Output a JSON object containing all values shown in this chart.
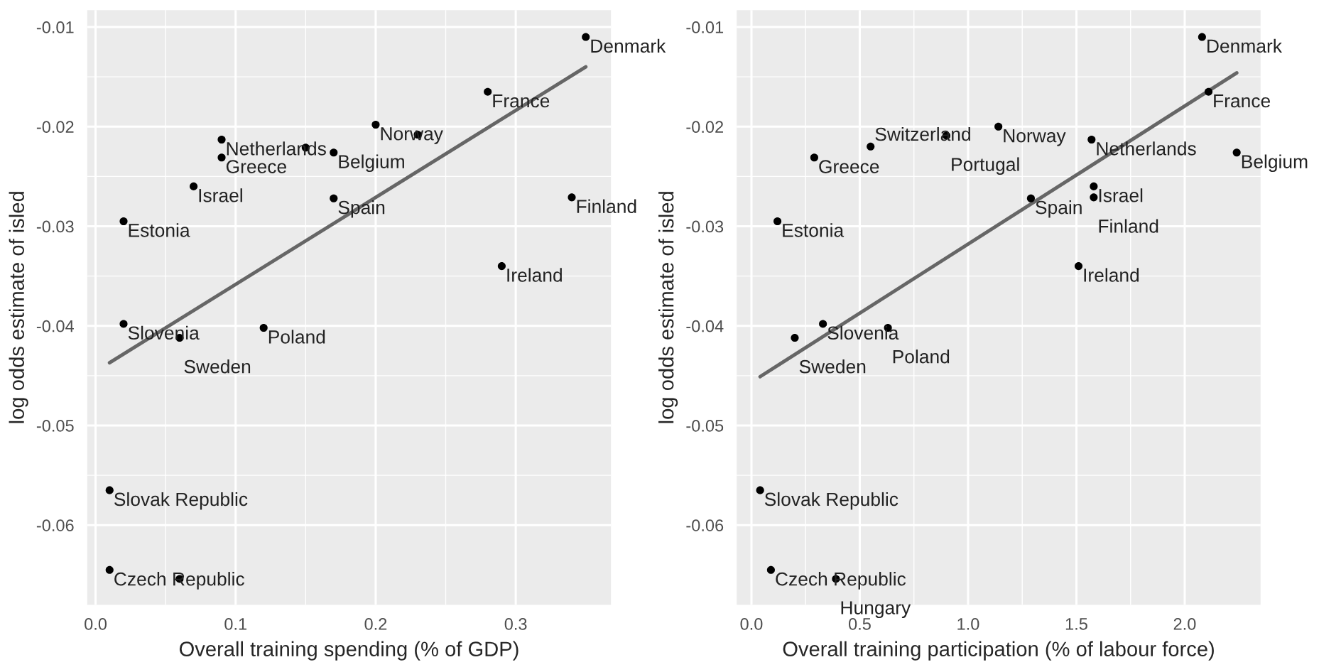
{
  "chart_data": [
    {
      "type": "scatter",
      "xlabel": "Overall training spending (% of GDP)",
      "ylabel": "log odds estimate of isled",
      "xlim": [
        -0.006,
        0.368
      ],
      "xticks": [
        {
          "value": 0,
          "label": "0.0"
        },
        {
          "value": 0.1,
          "label": "0.1"
        },
        {
          "value": 0.2,
          "label": "0.2"
        },
        {
          "value": 0.3,
          "label": "0.3"
        }
      ],
      "ylim": [
        -0.068,
        -0.0083
      ],
      "yticks": [
        {
          "value": -0.06,
          "label": "-0.06"
        },
        {
          "value": -0.05,
          "label": "-0.05"
        },
        {
          "value": -0.04,
          "label": "-0.04"
        },
        {
          "value": -0.03,
          "label": "-0.03"
        },
        {
          "value": -0.02,
          "label": "-0.02"
        },
        {
          "value": -0.01,
          "label": "-0.01"
        }
      ],
      "grid": true,
      "series": [
        {
          "type": "scatter",
          "marker": "circle",
          "color": "#000000",
          "x": [
            0.35,
            0.28,
            0.2,
            0.23,
            0.09,
            0.15,
            0.09,
            0.17,
            0.07,
            0.17,
            0.34,
            0.02,
            0.29,
            0.02,
            0.06,
            0.12,
            0.01,
            0.01,
            0.06
          ],
          "values": [
            -0.011,
            -0.0165,
            -0.0198,
            -0.0208,
            -0.0213,
            -0.0221,
            -0.0231,
            -0.0226,
            -0.026,
            -0.0272,
            -0.0271,
            -0.0295,
            -0.034,
            -0.0398,
            -0.0412,
            -0.0402,
            -0.0565,
            -0.0645,
            -0.0654
          ]
        },
        {
          "type": "line",
          "color": "#666666",
          "x": [
            0.01,
            0.35
          ],
          "values": [
            -0.0437,
            -0.014
          ]
        }
      ],
      "annotations": [
        {
          "text": "Denmark",
          "x": 0.35,
          "y": -0.011
        },
        {
          "text": "France",
          "x": 0.28,
          "y": -0.0165
        },
        {
          "text": "Norway",
          "x": 0.2,
          "y": -0.0198
        },
        {
          "text": "Netherlands",
          "x": 0.09,
          "y": -0.0213
        },
        {
          "text": "Greece",
          "x": 0.09,
          "y": -0.0231
        },
        {
          "text": "Belgium",
          "x": 0.17,
          "y": -0.0226
        },
        {
          "text": "Israel",
          "x": 0.07,
          "y": -0.026
        },
        {
          "text": "Spain",
          "x": 0.17,
          "y": -0.0272
        },
        {
          "text": "Finland",
          "x": 0.34,
          "y": -0.0271
        },
        {
          "text": "Estonia",
          "x": 0.02,
          "y": -0.0295
        },
        {
          "text": "Ireland",
          "x": 0.29,
          "y": -0.034
        },
        {
          "text": "Slovenia",
          "x": 0.02,
          "y": -0.0398
        },
        {
          "text": "Sweden",
          "x": 0.06,
          "y": -0.0412
        },
        {
          "text": "Poland",
          "x": 0.12,
          "y": -0.0402
        },
        {
          "text": "Slovak Republic",
          "x": 0.01,
          "y": -0.0565
        },
        {
          "text": "Czech Republic",
          "x": 0.01,
          "y": -0.0645
        }
      ]
    },
    {
      "type": "scatter",
      "xlabel": "Overall training participation (% of labour force)",
      "ylabel": "log odds estimate of isled",
      "xlim": [
        -0.068,
        2.35
      ],
      "xticks": [
        {
          "value": 0,
          "label": "0.0"
        },
        {
          "value": 0.5,
          "label": "0.5"
        },
        {
          "value": 1,
          "label": "1.0"
        },
        {
          "value": 1.5,
          "label": "1.5"
        },
        {
          "value": 2,
          "label": "2.0"
        }
      ],
      "ylim": [
        -0.068,
        -0.0083
      ],
      "yticks": [
        {
          "value": -0.06,
          "label": "-0.06"
        },
        {
          "value": -0.05,
          "label": "-0.05"
        },
        {
          "value": -0.04,
          "label": "-0.04"
        },
        {
          "value": -0.03,
          "label": "-0.03"
        },
        {
          "value": -0.02,
          "label": "-0.02"
        },
        {
          "value": -0.01,
          "label": "-0.01"
        }
      ],
      "grid": true,
      "series": [
        {
          "type": "scatter",
          "marker": "circle",
          "color": "#000000",
          "x": [
            2.08,
            2.11,
            1.14,
            0.9,
            0.55,
            0.29,
            1.57,
            2.24,
            1.58,
            1.58,
            1.29,
            0.12,
            1.51,
            0.33,
            0.63,
            0.2,
            0.04,
            0.09,
            0.39
          ],
          "values": [
            -0.011,
            -0.0165,
            -0.02,
            -0.0209,
            -0.022,
            -0.0231,
            -0.0213,
            -0.0226,
            -0.026,
            -0.0271,
            -0.0272,
            -0.0295,
            -0.034,
            -0.0398,
            -0.0402,
            -0.0412,
            -0.0565,
            -0.0645,
            -0.0654
          ]
        },
        {
          "type": "line",
          "color": "#666666",
          "x": [
            0.04,
            2.24
          ],
          "values": [
            -0.0451,
            -0.0146
          ]
        }
      ],
      "annotations": [
        {
          "text": "Denmark",
          "x": 2.08,
          "y": -0.011
        },
        {
          "text": "France",
          "x": 2.11,
          "y": -0.0165
        },
        {
          "text": "Norway",
          "x": 1.14,
          "y": -0.02
        },
        {
          "text": "Portugal",
          "x": 0.9,
          "y": -0.0209
        },
        {
          "text": "Switzerland",
          "x": 0.55,
          "y": -0.022
        },
        {
          "text": "Greece",
          "x": 0.29,
          "y": -0.0231
        },
        {
          "text": "Netherlands",
          "x": 1.57,
          "y": -0.0213
        },
        {
          "text": "Belgium",
          "x": 2.24,
          "y": -0.0226
        },
        {
          "text": "Israel",
          "x": 1.58,
          "y": -0.026
        },
        {
          "text": "Finland",
          "x": 1.58,
          "y": -0.0271
        },
        {
          "text": "Spain",
          "x": 1.29,
          "y": -0.0272
        },
        {
          "text": "Estonia",
          "x": 0.12,
          "y": -0.0295
        },
        {
          "text": "Ireland",
          "x": 1.51,
          "y": -0.034
        },
        {
          "text": "Slovenia",
          "x": 0.33,
          "y": -0.0398
        },
        {
          "text": "Poland",
          "x": 0.63,
          "y": -0.0402
        },
        {
          "text": "Sweden",
          "x": 0.2,
          "y": -0.0412
        },
        {
          "text": "Slovak Republic",
          "x": 0.04,
          "y": -0.0565
        },
        {
          "text": "Czech Republic",
          "x": 0.09,
          "y": -0.0645
        },
        {
          "text": "Hungary",
          "x": 0.39,
          "y": -0.0654
        }
      ]
    }
  ]
}
